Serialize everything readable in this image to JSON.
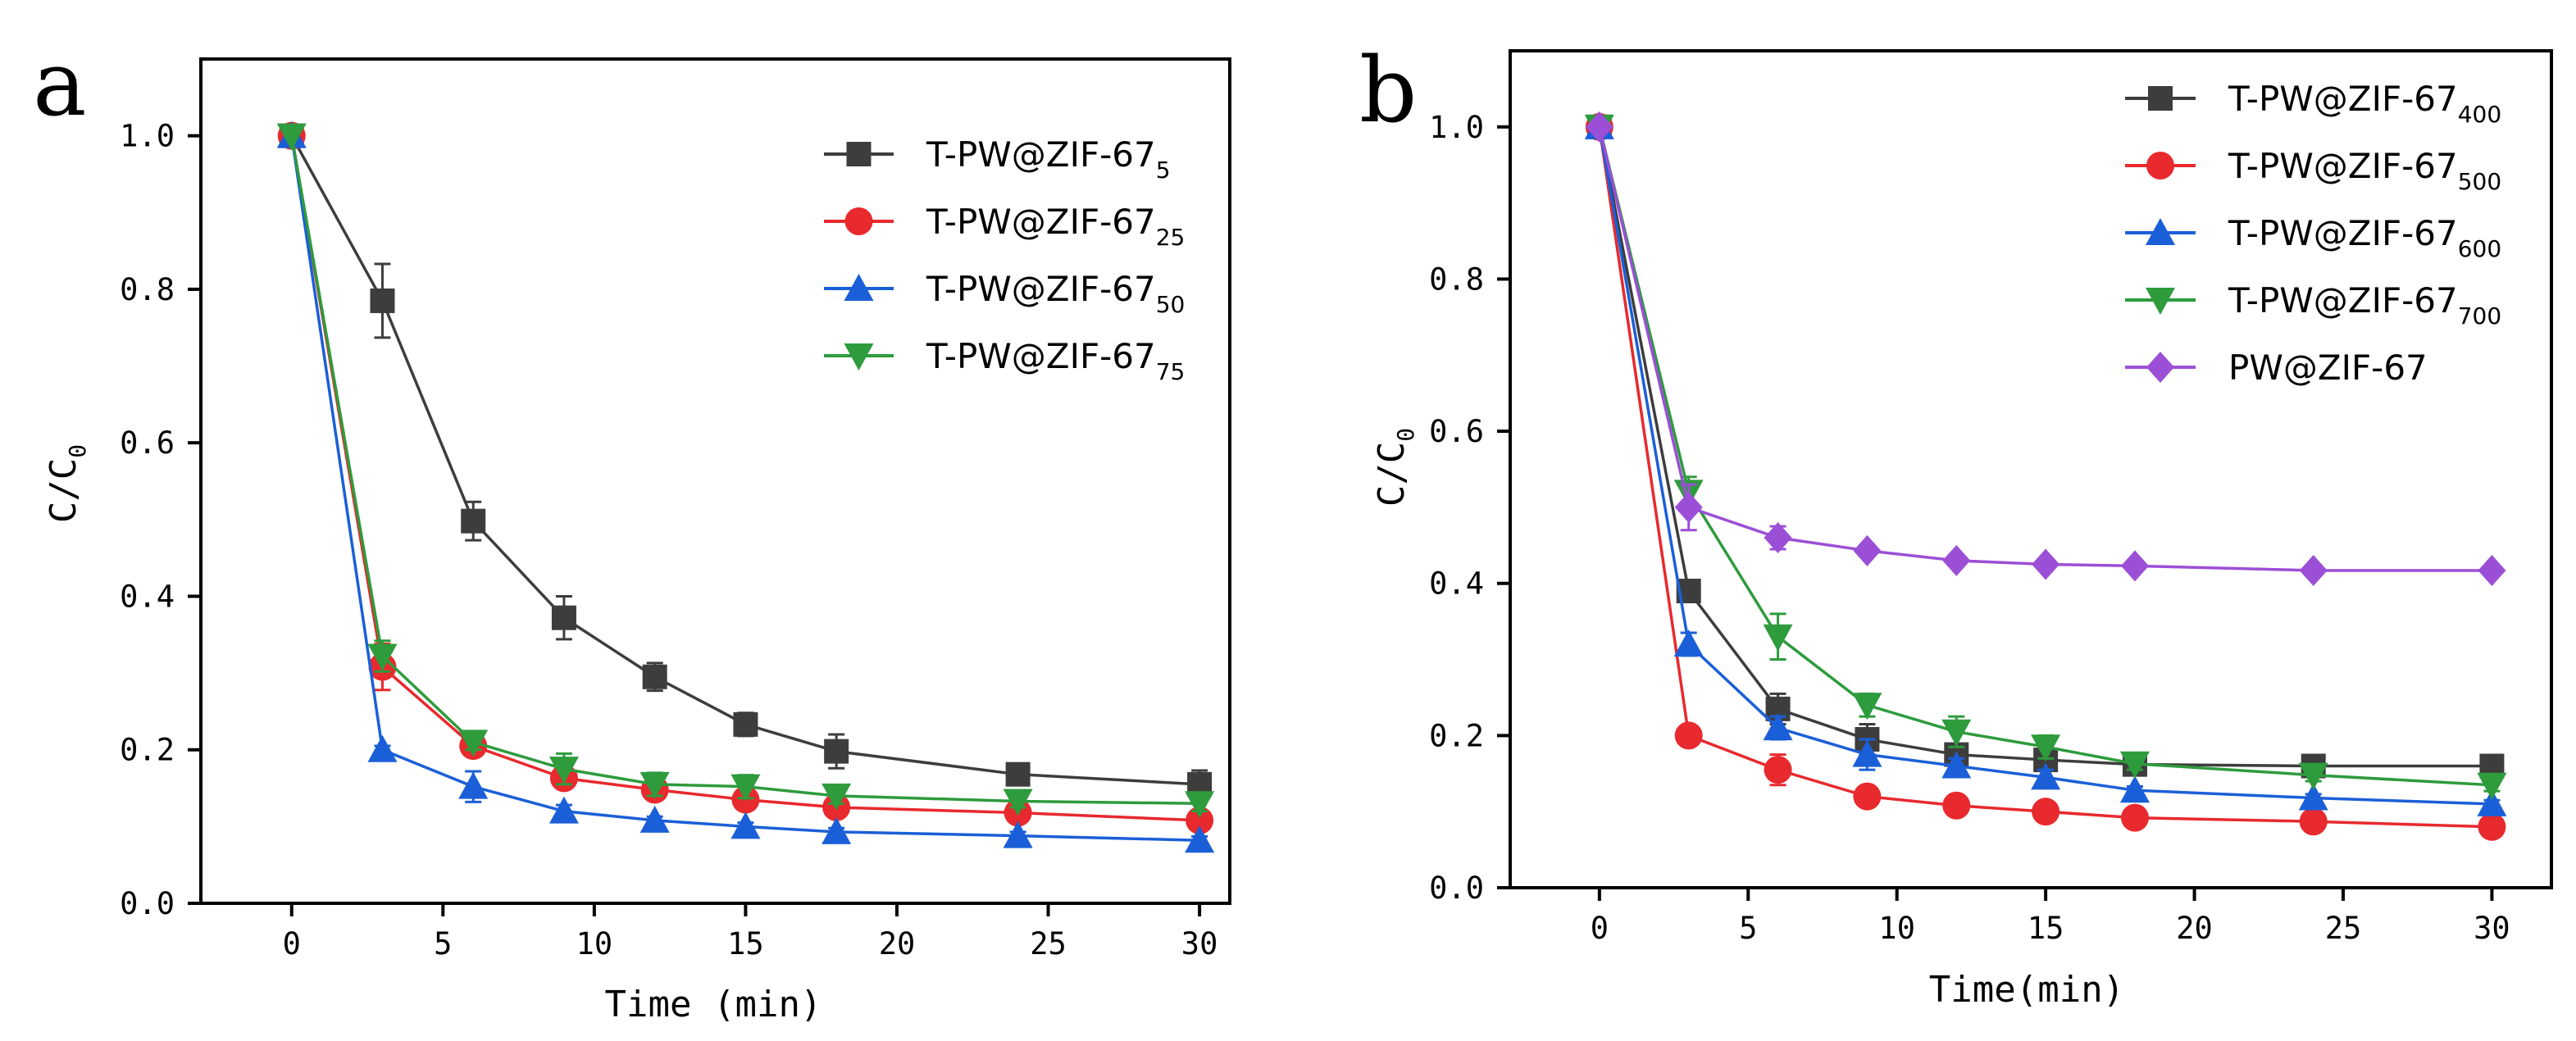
{
  "figure": {
    "panel_labels": [
      "a",
      "b"
    ]
  },
  "chart_data": [
    {
      "type": "line",
      "panel": "a",
      "title": "",
      "xlabel": "Time (min)",
      "ylabel_base": "C/C",
      "ylabel_sub": "0",
      "xlim": [
        -3,
        31
      ],
      "ylim": [
        0,
        1.1
      ],
      "xticks": [
        0,
        5,
        10,
        15,
        20,
        25,
        30
      ],
      "yticks": [
        0.0,
        0.2,
        0.4,
        0.6,
        0.8,
        1.0
      ],
      "xtick_labels": [
        "0",
        "5",
        "10",
        "15",
        "20",
        "25",
        "30"
      ],
      "ytick_labels": [
        "0.0",
        "0.2",
        "0.4",
        "0.6",
        "0.8",
        "1.0"
      ],
      "grid": false,
      "legend_position": "top-right",
      "x": [
        0,
        3,
        6,
        9,
        12,
        15,
        18,
        24,
        30
      ],
      "series": [
        {
          "name": "T-PW@ZIF-67",
          "sub": "5",
          "color": "#3d3d3d",
          "marker": "square",
          "values": [
            1.0,
            0.785,
            0.498,
            0.372,
            0.295,
            0.233,
            0.198,
            0.168,
            0.155
          ],
          "errors": [
            0,
            0.048,
            0.025,
            0.028,
            0.018,
            0.015,
            0.022,
            0.008,
            0.018
          ]
        },
        {
          "name": "T-PW@ZIF-67",
          "sub": "25",
          "color": "#e8292d",
          "marker": "circle",
          "values": [
            1.0,
            0.308,
            0.205,
            0.163,
            0.148,
            0.135,
            0.125,
            0.118,
            0.108
          ],
          "errors": [
            0,
            0.03,
            0.01,
            0.01,
            0.01,
            0.01,
            0.01,
            0.01,
            0.01
          ]
        },
        {
          "name": "T-PW@ZIF-67",
          "sub": "50",
          "color": "#1b5fd8",
          "marker": "triangle-up",
          "values": [
            1.0,
            0.2,
            0.152,
            0.12,
            0.108,
            0.1,
            0.093,
            0.088,
            0.082
          ],
          "errors": [
            0,
            0.005,
            0.02,
            0.008,
            0.005,
            0.005,
            0.005,
            0.005,
            0.005
          ]
        },
        {
          "name": "T-PW@ZIF-67",
          "sub": "75",
          "color": "#2e9b3d",
          "marker": "triangle-down",
          "values": [
            1.0,
            0.322,
            0.21,
            0.175,
            0.155,
            0.152,
            0.14,
            0.133,
            0.13
          ],
          "errors": [
            0,
            0.02,
            0.01,
            0.02,
            0.015,
            0.015,
            0.01,
            0.008,
            0.01
          ]
        }
      ]
    },
    {
      "type": "line",
      "panel": "b",
      "title": "",
      "xlabel": "Time(min)",
      "ylabel_base": "C/C",
      "ylabel_sub": "0",
      "xlim": [
        -3,
        32
      ],
      "ylim": [
        0,
        1.1
      ],
      "xticks": [
        0,
        5,
        10,
        15,
        20,
        25,
        30
      ],
      "yticks": [
        0.0,
        0.2,
        0.4,
        0.6,
        0.8,
        1.0
      ],
      "xtick_labels": [
        "0",
        "5",
        "10",
        "15",
        "20",
        "25",
        "30"
      ],
      "ytick_labels": [
        "0.0",
        "0.2",
        "0.4",
        "0.6",
        "0.8",
        "1.0"
      ],
      "grid": false,
      "legend_position": "top-right",
      "x": [
        0,
        3,
        6,
        9,
        12,
        15,
        18,
        24,
        30
      ],
      "series": [
        {
          "name": "T-PW@ZIF-67",
          "sub": "400",
          "color": "#3d3d3d",
          "marker": "square",
          "values": [
            1.0,
            0.39,
            0.235,
            0.195,
            0.175,
            0.168,
            0.162,
            0.16,
            0.16
          ],
          "errors": [
            0,
            0.01,
            0.02,
            0.02,
            0.01,
            0.01,
            0.005,
            0.005,
            0.005
          ]
        },
        {
          "name": "T-PW@ZIF-67",
          "sub": "500",
          "color": "#e8292d",
          "marker": "circle",
          "values": [
            1.0,
            0.2,
            0.155,
            0.12,
            0.108,
            0.1,
            0.092,
            0.087,
            0.08
          ],
          "errors": [
            0,
            0.005,
            0.02,
            0.005,
            0.005,
            0.005,
            0.005,
            0.005,
            0.005
          ]
        },
        {
          "name": "T-PW@ZIF-67",
          "sub": "600",
          "color": "#1b5fd8",
          "marker": "triangle-up",
          "values": [
            1.0,
            0.32,
            0.21,
            0.175,
            0.16,
            0.145,
            0.128,
            0.118,
            0.11
          ],
          "errors": [
            0,
            0.015,
            0.015,
            0.02,
            0.01,
            0.01,
            0.005,
            0.005,
            0.005
          ]
        },
        {
          "name": "T-PW@ZIF-67",
          "sub": "700",
          "color": "#2e9b3d",
          "marker": "triangle-down",
          "values": [
            1.0,
            0.52,
            0.33,
            0.24,
            0.205,
            0.185,
            0.163,
            0.148,
            0.135
          ],
          "errors": [
            0,
            0.02,
            0.03,
            0.015,
            0.02,
            0.015,
            0.008,
            0.008,
            0.008
          ]
        },
        {
          "name": "PW@ZIF-67",
          "sub": "",
          "color": "#9b4fd6",
          "marker": "diamond",
          "values": [
            1.0,
            0.5,
            0.46,
            0.443,
            0.43,
            0.425,
            0.423,
            0.417,
            0.417
          ],
          "errors": [
            0,
            0.03,
            0.015,
            0.005,
            0.005,
            0.005,
            0.005,
            0.005,
            0.005
          ]
        }
      ]
    }
  ]
}
